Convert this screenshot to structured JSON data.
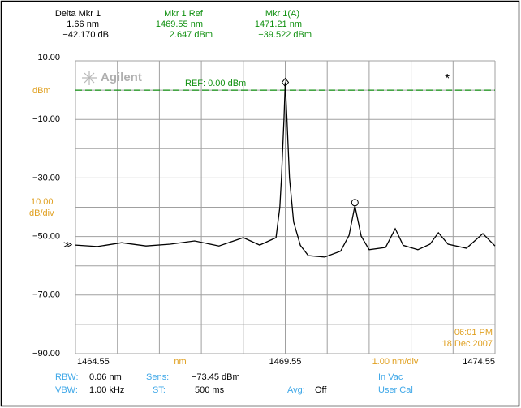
{
  "chart_data": {
    "type": "line",
    "readouts": [
      {
        "title": "Delta Mkr 1",
        "lines": [
          "1.66 nm",
          "−42.170 dB"
        ],
        "color": "#000000"
      },
      {
        "title": "Mkr 1 Ref",
        "lines": [
          "1469.55 nm",
          "2.647 dBm"
        ],
        "color": "#109010"
      },
      {
        "title": "Mkr 1(A)",
        "lines": [
          "1471.21 nm",
          "−39.522 dBm"
        ],
        "color": "#109010"
      }
    ],
    "logo": "Agilent",
    "y_unit": "dBm",
    "y_scale": "10.00",
    "y_scale_unit": "dB/div",
    "x_unit": "nm",
    "x_scale": "1.00 nm/div",
    "time": "06:01 PM",
    "date": "18 Dec 2007",
    "reference": {
      "value": 0,
      "label": "REF: 0.00 dBm",
      "color": "#109010"
    },
    "xlim": [
      1464.55,
      1474.55
    ],
    "ylim": [
      -90,
      10
    ],
    "xticks": [
      1464.55,
      1469.55,
      1474.55
    ],
    "yticks": [
      {
        "value": 10,
        "label": "10.00"
      },
      {
        "value": -10,
        "label": "−10.00"
      },
      {
        "value": -30,
        "label": "−30.00"
      },
      {
        "value": -50,
        "label": "−50.00"
      },
      {
        "value": -70,
        "label": "−70.00"
      },
      {
        "value": -90,
        "label": "−90.00"
      }
    ],
    "grid": true,
    "series": [
      {
        "color": "#000000",
        "x": [
          1464.55,
          1465.07,
          1465.65,
          1466.23,
          1466.81,
          1467.39,
          1467.97,
          1468.55,
          1468.94,
          1469.33,
          1469.42,
          1469.46,
          1469.52,
          1469.55,
          1469.59,
          1469.65,
          1469.75,
          1469.91,
          1470.1,
          1470.49,
          1470.87,
          1471.07,
          1471.21,
          1471.36,
          1471.55,
          1471.94,
          1472.17,
          1472.36,
          1472.71,
          1473.0,
          1473.2,
          1473.43,
          1473.87,
          1474.26,
          1474.55
        ],
        "values": [
          -52.9,
          -53.4,
          -52.1,
          -53.2,
          -52.6,
          -51.5,
          -53.2,
          -50.4,
          -52.9,
          -50.4,
          -40,
          -30,
          -10,
          2.6,
          -10,
          -30,
          -45,
          -53,
          -56.5,
          -57,
          -55,
          -49.6,
          -39.5,
          -49.9,
          -54.5,
          -53.7,
          -47.3,
          -53,
          -54.5,
          -52.6,
          -48.7,
          -52.6,
          -54,
          -49,
          -53.2
        ]
      }
    ],
    "markers": [
      {
        "x": 1469.55,
        "y": 2.647,
        "symbol": "diamond"
      },
      {
        "x": 1471.21,
        "y": -39.522,
        "symbol": "circle"
      }
    ],
    "settings": [
      [
        {
          "label": "RBW:",
          "value": "0.06 nm"
        },
        {
          "label": "Sens:",
          "value": "−73.45 dBm"
        },
        {
          "label": "In Vac"
        }
      ],
      [
        {
          "label": "VBW:",
          "value": "1.00 kHz"
        },
        {
          "label": "ST:",
          "value": "500 ms"
        },
        {
          "label": "Avg:",
          "value": "Off"
        },
        {
          "label": "User Cal"
        }
      ]
    ]
  }
}
